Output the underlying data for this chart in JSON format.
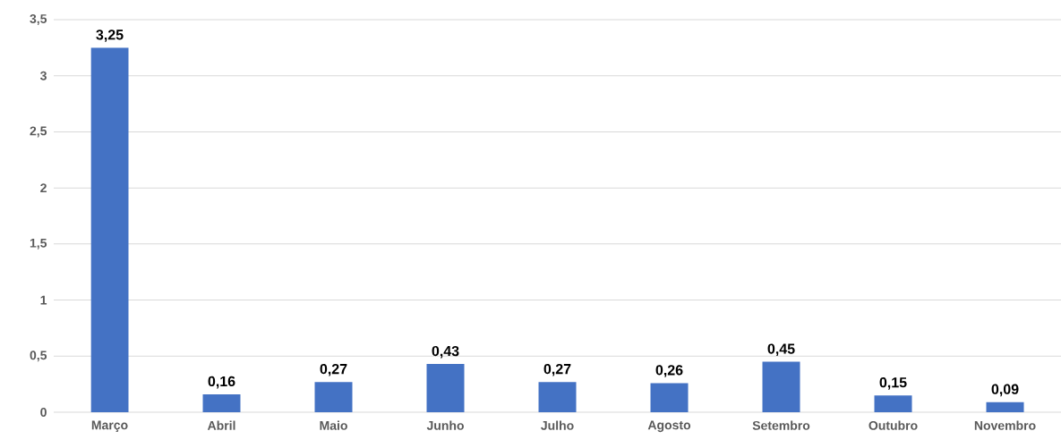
{
  "chart_data": {
    "type": "bar",
    "categories": [
      "Março",
      "Abril",
      "Maio",
      "Junho",
      "Julho",
      "Agosto",
      "Setembro",
      "Outubro",
      "Novembro"
    ],
    "values": [
      3.25,
      0.16,
      0.27,
      0.43,
      0.27,
      0.26,
      0.45,
      0.15,
      0.09
    ],
    "value_labels": [
      "3,25",
      "0,16",
      "0,27",
      "0,43",
      "0,27",
      "0,26",
      "0,45",
      "0,15",
      "0,09"
    ],
    "color": "#4472c4",
    "ylim": [
      0,
      3.5
    ],
    "yticks": [
      {
        "value": 0,
        "label": "0"
      },
      {
        "value": 0.5,
        "label": "0,5"
      },
      {
        "value": 1,
        "label": "1"
      },
      {
        "value": 1.5,
        "label": "1,5"
      },
      {
        "value": 2,
        "label": "2"
      },
      {
        "value": 2.5,
        "label": "2,5"
      },
      {
        "value": 3,
        "label": "3"
      },
      {
        "value": 3.5,
        "label": "3,5"
      }
    ],
    "grid": "y"
  }
}
